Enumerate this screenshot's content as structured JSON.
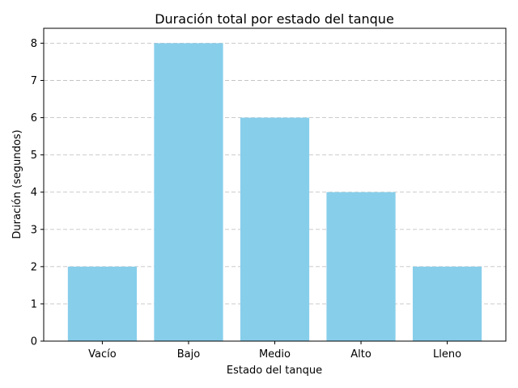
{
  "chart_data": {
    "type": "bar",
    "title": "Duración total por estado del tanque",
    "xlabel": "Estado del tanque",
    "ylabel": "Duración (segundos)",
    "categories": [
      "Vacío",
      "Bajo",
      "Medio",
      "Alto",
      "Lleno"
    ],
    "values": [
      2,
      8,
      6,
      4,
      2
    ],
    "ylim": [
      0,
      8.4
    ],
    "yticks": [
      0,
      1,
      2,
      3,
      4,
      5,
      6,
      7,
      8
    ],
    "grid": "y-dashed",
    "bar_color": "#87ceeb"
  }
}
